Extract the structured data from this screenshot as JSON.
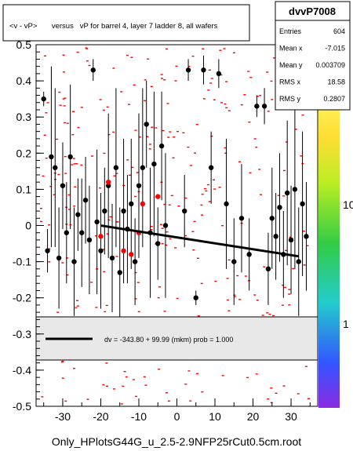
{
  "title": "<v - vP>       versus   vP for barrel 4, layer 7 ladder 8, all wafers",
  "footer": "Only_HPlotsG44G_u_2.5-2.9NFP25rCut0.5cm.root",
  "stats": {
    "name": "dvvP7008",
    "rows": [
      {
        "label": "Entries",
        "value": "604"
      },
      {
        "label": "Mean x",
        "value": "-7.015"
      },
      {
        "label": "Mean y",
        "value": "0.003709"
      },
      {
        "label": "RMS x",
        "value": "18.58"
      },
      {
        "label": "RMS y",
        "value": "0.2807"
      }
    ]
  },
  "legend": {
    "fit_label": "dv = -343.80 + 99.99 (mkm) prob = 1.000"
  },
  "palette_labels": [
    "10",
    "1"
  ],
  "colors": {
    "accent_point": "#ff0000",
    "profile": "#000000",
    "fit_line": "#000000",
    "frame": "#000000"
  },
  "chart_data": {
    "type": "scatter",
    "xlim": [
      -37,
      37
    ],
    "ylim": [
      -0.5,
      0.5
    ],
    "x_ticks": [
      "-30",
      "-20",
      "-10",
      "0",
      "10",
      "20",
      "30"
    ],
    "y_ticks": [
      "0.5",
      "0.4",
      "0.3",
      "0.2",
      "0.1",
      "0",
      "-0.1",
      "-0.2",
      "-0.3",
      "-0.4",
      "-0.5"
    ],
    "fit": {
      "x": [
        -20,
        32
      ],
      "y": [
        -0.0001,
        -0.0853
      ]
    },
    "profile": [
      {
        "x": -35,
        "y": 0.35,
        "err": 0.02
      },
      {
        "x": -34,
        "y": -0.07,
        "err": 0.06
      },
      {
        "x": -33,
        "y": 0.19,
        "err": 0.25
      },
      {
        "x": -32,
        "y": 0.16,
        "err": 0.22
      },
      {
        "x": -31,
        "y": -0.09,
        "err": 0.14
      },
      {
        "x": -30,
        "y": 0.11,
        "err": 0.12
      },
      {
        "x": -29,
        "y": -0.02,
        "err": 0.14
      },
      {
        "x": -28,
        "y": 0.19,
        "err": 0.2
      },
      {
        "x": -27,
        "y": -0.1,
        "err": 0.15
      },
      {
        "x": -26,
        "y": 0.03,
        "err": 0.1
      },
      {
        "x": -25,
        "y": -0.02,
        "err": 0.15
      },
      {
        "x": -24,
        "y": 0.07,
        "err": 0.12
      },
      {
        "x": -23,
        "y": -0.04,
        "err": 0.15
      },
      {
        "x": -22,
        "y": 0.43,
        "err": 0.03
      },
      {
        "x": -21,
        "y": 0.01,
        "err": 0.2
      },
      {
        "x": -20,
        "y": -0.07,
        "err": 0.16
      },
      {
        "x": -19,
        "y": 0.04,
        "err": 0.12
      },
      {
        "x": -18,
        "y": 0.11,
        "err": 0.2
      },
      {
        "x": -17,
        "y": -0.09,
        "err": 0.15
      },
      {
        "x": -16,
        "y": 0.16,
        "err": 0.22
      },
      {
        "x": -15,
        "y": -0.13,
        "err": 0.18
      },
      {
        "x": -14,
        "y": 0.04,
        "err": 0.2
      },
      {
        "x": -13,
        "y": -0.01,
        "err": 0.15
      },
      {
        "x": -12,
        "y": 0.06,
        "err": 0.18
      },
      {
        "x": -11,
        "y": -0.1,
        "err": 0.12
      },
      {
        "x": -10,
        "y": 0.11,
        "err": 0.2
      },
      {
        "x": -9,
        "y": 0.16,
        "err": 0.22
      },
      {
        "x": -8,
        "y": 0.28,
        "err": 0.12
      },
      {
        "x": -7,
        "y": -0.02,
        "err": 0.18
      },
      {
        "x": -6,
        "y": 0.17,
        "err": 0.2
      },
      {
        "x": -5,
        "y": -0.05,
        "err": 0.1
      },
      {
        "x": -4,
        "y": 0.22,
        "err": 0.15
      },
      {
        "x": -3,
        "y": 0.0,
        "err": 0.2
      },
      {
        "x": 2,
        "y": 0.04,
        "err": 0.1
      },
      {
        "x": 3,
        "y": 0.43,
        "err": 0.03
      },
      {
        "x": 5,
        "y": -0.2,
        "err": 0.02
      },
      {
        "x": 7,
        "y": 0.43,
        "err": 0.04
      },
      {
        "x": 9,
        "y": 0.16,
        "err": 0.1
      },
      {
        "x": 11,
        "y": 0.42,
        "err": 0.04
      },
      {
        "x": 13,
        "y": 0.06,
        "err": 0.18
      },
      {
        "x": 15,
        "y": -0.1,
        "err": 0.12
      },
      {
        "x": 17,
        "y": 0.02,
        "err": 0.15
      },
      {
        "x": 19,
        "y": -0.08,
        "err": 0.1
      },
      {
        "x": 21,
        "y": 0.33,
        "err": 0.03
      },
      {
        "x": 23,
        "y": 0.33,
        "err": 0.05
      },
      {
        "x": 24,
        "y": -0.12,
        "err": 0.1
      },
      {
        "x": 25,
        "y": 0.02,
        "err": 0.14
      },
      {
        "x": 26,
        "y": -0.03,
        "err": 0.12
      },
      {
        "x": 27,
        "y": 0.05,
        "err": 0.15
      },
      {
        "x": 28,
        "y": -0.08,
        "err": 0.12
      },
      {
        "x": 29,
        "y": 0.09,
        "err": 0.2
      },
      {
        "x": 30,
        "y": -0.04,
        "err": 0.15
      },
      {
        "x": 31,
        "y": 0.1,
        "err": 0.22
      },
      {
        "x": 32,
        "y": -0.1,
        "err": 0.15
      },
      {
        "x": 33,
        "y": 0.06,
        "err": 0.2
      },
      {
        "x": 34,
        "y": -0.03,
        "err": 0.15
      }
    ],
    "highlight": [
      {
        "x": -18,
        "y": 0.12
      },
      {
        "x": -20,
        "y": -0.03
      },
      {
        "x": -14,
        "y": -0.07
      },
      {
        "x": -12,
        "y": -0.08
      },
      {
        "x": -9,
        "y": 0.06
      },
      {
        "x": -5,
        "y": 0.08
      },
      {
        "x": -10,
        "y": -0.02
      }
    ]
  }
}
